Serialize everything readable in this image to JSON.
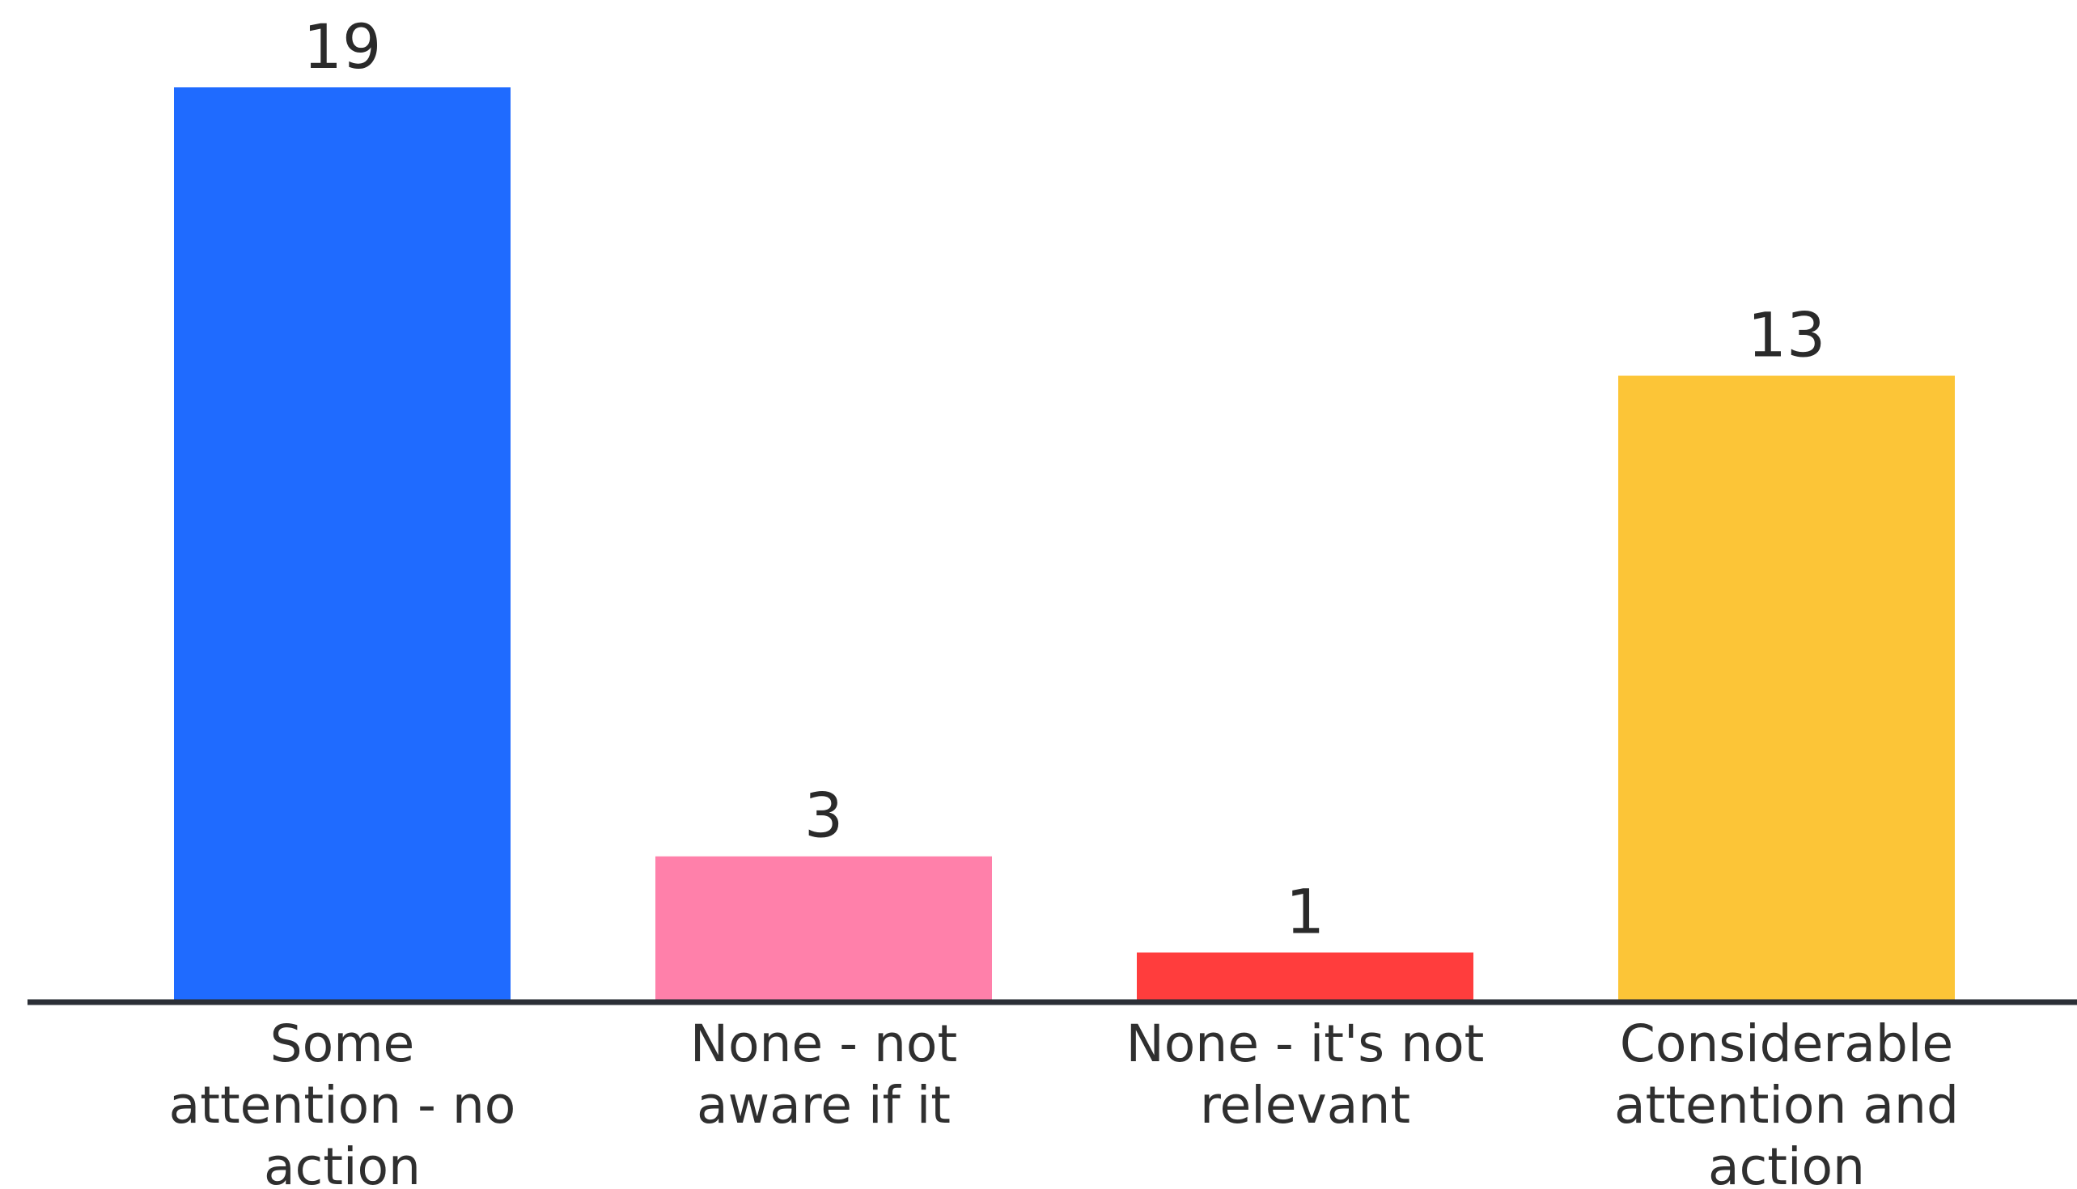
{
  "chart_data": {
    "type": "bar",
    "title": "",
    "xlabel": "",
    "ylabel": "",
    "categories": [
      [
        "Some",
        "attention - no",
        "action"
      ],
      [
        "None - not",
        "aware if it"
      ],
      [
        "None - it's not",
        "relevant"
      ],
      [
        "Considerable",
        "attention and",
        "action"
      ]
    ],
    "values": [
      19,
      3,
      1,
      13
    ],
    "value_labels": [
      "19",
      "3",
      "1",
      "13"
    ],
    "colors": [
      "#1f6bff",
      "#ff80aa",
      "#ff3d3d",
      "#fcc537"
    ],
    "axis_color": "#2b2f36",
    "ylim": [
      0,
      19
    ],
    "grid": false,
    "legend": "none"
  }
}
